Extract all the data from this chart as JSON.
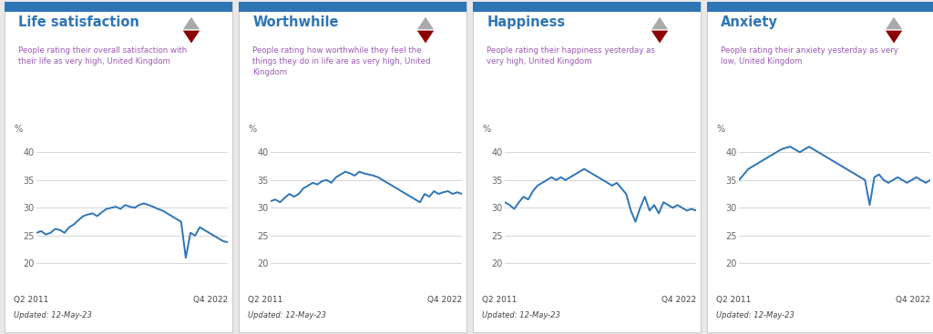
{
  "panels": [
    {
      "title": "Life satisfaction",
      "subtitle": "People rating their overall satisfaction with\ntheir life as very high, United Kingdom",
      "ylim": [
        18,
        43
      ],
      "yticks": [
        20,
        25,
        30,
        35,
        40
      ],
      "xlabel_left": "Q2 2011",
      "xlabel_right": "Q4 2022",
      "updated": "Updated: 12-May-23",
      "values": [
        25.5,
        25.8,
        25.2,
        25.5,
        26.2,
        26.0,
        25.5,
        26.5,
        27.0,
        27.8,
        28.5,
        28.8,
        29.0,
        28.5,
        29.2,
        29.8,
        30.0,
        30.2,
        29.8,
        30.5,
        30.2,
        30.0,
        30.5,
        30.8,
        30.5,
        30.2,
        29.8,
        29.5,
        29.0,
        28.5,
        28.0,
        27.5,
        21.0,
        25.5,
        25.0,
        26.5,
        26.0,
        25.5,
        25.0,
        24.5,
        24.0,
        23.8
      ]
    },
    {
      "title": "Worthwhile",
      "subtitle": "People rating how worthwhile they feel the\nthings they do in life are as very high, United\nKingdom",
      "ylim": [
        18,
        43
      ],
      "yticks": [
        20,
        25,
        30,
        35,
        40
      ],
      "xlabel_left": "Q2 2011",
      "xlabel_right": "Q4 2022",
      "updated": "Updated: 12-May-23",
      "values": [
        31.2,
        31.5,
        31.0,
        31.8,
        32.5,
        32.0,
        32.5,
        33.5,
        34.0,
        34.5,
        34.2,
        34.8,
        35.0,
        34.5,
        35.5,
        36.0,
        36.5,
        36.2,
        35.8,
        36.5,
        36.2,
        36.0,
        35.8,
        35.5,
        35.0,
        34.5,
        34.0,
        33.5,
        33.0,
        32.5,
        32.0,
        31.5,
        31.0,
        32.5,
        32.0,
        33.0,
        32.5,
        32.8,
        33.0,
        32.5,
        32.8,
        32.5
      ]
    },
    {
      "title": "Happiness",
      "subtitle": "People rating their happiness yesterday as\nvery high, United Kingdom",
      "ylim": [
        18,
        43
      ],
      "yticks": [
        20,
        25,
        30,
        35,
        40
      ],
      "xlabel_left": "Q2 2011",
      "xlabel_right": "Q4 2022",
      "updated": "Updated: 12-May-23",
      "values": [
        31.0,
        30.5,
        29.8,
        31.0,
        32.0,
        31.5,
        33.0,
        34.0,
        34.5,
        35.0,
        35.5,
        35.0,
        35.5,
        35.0,
        35.5,
        36.0,
        36.5,
        37.0,
        36.5,
        36.0,
        35.5,
        35.0,
        34.5,
        34.0,
        34.5,
        33.5,
        32.5,
        29.5,
        27.5,
        30.0,
        32.0,
        29.5,
        30.5,
        29.0,
        31.0,
        30.5,
        30.0,
        30.5,
        30.0,
        29.5,
        29.8,
        29.5
      ]
    },
    {
      "title": "Anxiety",
      "subtitle": "People rating their anxiety yesterday as very\nlow, United Kingdom",
      "ylim": [
        18,
        43
      ],
      "yticks": [
        20,
        25,
        30,
        35,
        40
      ],
      "xlabel_left": "Q2 2011",
      "xlabel_right": "Q4 2022",
      "updated": "Updated: 12-May-23",
      "values": [
        35.0,
        36.0,
        37.0,
        37.5,
        38.0,
        38.5,
        39.0,
        39.5,
        40.0,
        40.5,
        40.8,
        41.0,
        40.5,
        40.0,
        40.5,
        41.0,
        40.5,
        40.0,
        39.5,
        39.0,
        38.5,
        38.0,
        37.5,
        37.0,
        36.5,
        36.0,
        35.5,
        35.0,
        30.5,
        35.5,
        36.0,
        35.0,
        34.5,
        35.0,
        35.5,
        35.0,
        34.5,
        35.0,
        35.5,
        35.0,
        34.5,
        35.0
      ]
    }
  ],
  "line_color": "#2e75b6",
  "title_color": "#2e75b6",
  "subtitle_color": "#9b59b6",
  "top_bar_color": "#2e75b6",
  "card_bg": "#ffffff",
  "outer_bg": "#e8e8e8",
  "border_color": "#cccccc",
  "tick_color": "#666666",
  "grid_color": "#d0d0d0",
  "bottom_text_color": "#444444",
  "icon_top_color": "#aaaaaa",
  "icon_bottom_color": "#8b0000"
}
